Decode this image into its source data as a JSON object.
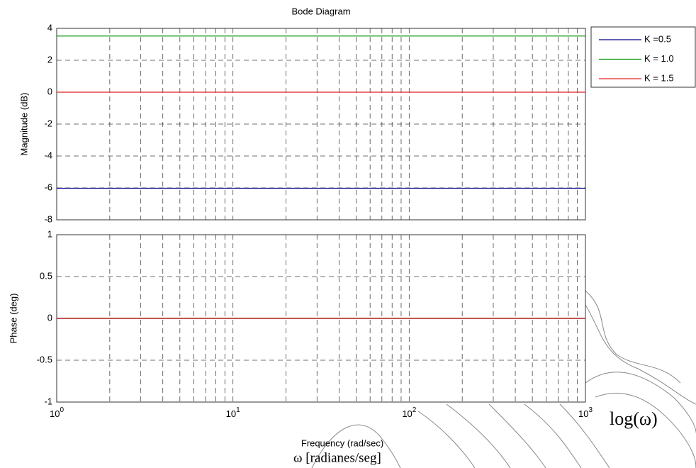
{
  "chart_data": [
    {
      "type": "line",
      "title": "Bode Diagram",
      "ylabel": "Magnitude (dB)",
      "x": [
        1,
        1000
      ],
      "xlim": [
        1,
        1000
      ],
      "xscale": "log",
      "xticks": [
        1,
        10,
        100,
        1000
      ],
      "show_xtick_labels": false,
      "xminor": [
        2,
        3,
        4,
        5,
        6,
        7,
        8,
        9,
        20,
        30,
        40,
        50,
        60,
        70,
        80,
        90,
        200,
        300,
        400,
        500,
        600,
        700,
        800,
        900
      ],
      "ylim": [
        -8,
        4
      ],
      "yticks": [
        4,
        2,
        0,
        -2,
        -4,
        -6,
        -8
      ],
      "grid": true,
      "legend": "outside-right",
      "series": [
        {
          "name": "K =0.5",
          "color": "#00008b",
          "values": [
            -6.02,
            -6.02
          ]
        },
        {
          "name": "K = 1.0",
          "color": "#009000",
          "values": [
            3.52,
            3.52
          ]
        },
        {
          "name": "K = 1.5",
          "color": "#e02020",
          "values": [
            0,
            0
          ]
        }
      ]
    },
    {
      "type": "line",
      "ylabel": "Phase (deg)",
      "xlabel": "Frequency  (rad/sec)",
      "x": [
        1,
        1000
      ],
      "xlim": [
        1,
        1000
      ],
      "xscale": "log",
      "xticks": [
        {
          "value": 1,
          "label": "10",
          "exponent": "0"
        },
        {
          "value": 10,
          "label": "10",
          "exponent": "1"
        },
        {
          "value": 100,
          "label": "10",
          "exponent": "2"
        },
        {
          "value": 1000,
          "label": "10",
          "exponent": "3"
        }
      ],
      "show_xtick_labels": true,
      "xminor": [
        2,
        3,
        4,
        5,
        6,
        7,
        8,
        9,
        20,
        30,
        40,
        50,
        60,
        70,
        80,
        90,
        200,
        300,
        400,
        500,
        600,
        700,
        800,
        900
      ],
      "ylim": [
        -1,
        1
      ],
      "yticks": [
        1,
        0.5,
        0,
        -0.5,
        -1
      ],
      "grid": true,
      "series": [
        {
          "color": "#00008b",
          "values": [
            0,
            0
          ]
        },
        {
          "color": "#009000",
          "values": [
            0,
            0
          ]
        },
        {
          "color": "#e02020",
          "values": [
            0,
            0
          ]
        }
      ],
      "annotations": [
        "log(ω)",
        "ω [radianes/seg]"
      ]
    }
  ]
}
